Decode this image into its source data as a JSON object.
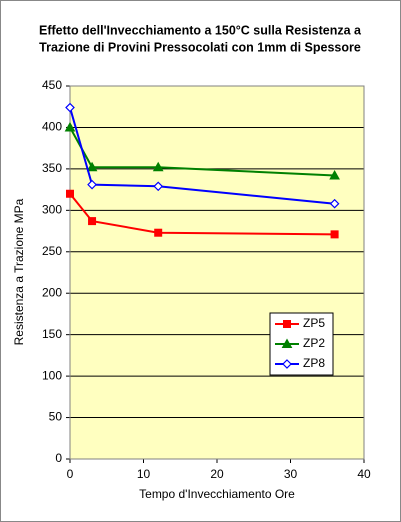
{
  "chart_data": {
    "type": "line",
    "title": [
      "Effetto dell'Invecchiamento a 150°C sulla Resistenza a",
      "Trazione di Provini Pressocolati con 1mm di Spessore"
    ],
    "x_label": "Tempo d'Invecchiamento Ore",
    "y_label": "Resistenza a Trazione MPa",
    "x": [
      0,
      3,
      12,
      36
    ],
    "series": [
      {
        "name": "ZP5",
        "color": "#ff0000",
        "marker": "square",
        "values": [
          320,
          287,
          273,
          271
        ]
      },
      {
        "name": "ZP2",
        "color": "#008000",
        "marker": "triangle",
        "values": [
          400,
          352,
          352,
          342
        ]
      },
      {
        "name": "ZP8",
        "color": "#0000ff",
        "marker": "diamond",
        "values": [
          424,
          331,
          329,
          308
        ]
      }
    ],
    "xlim": [
      0,
      40
    ],
    "xticks": [
      0,
      10,
      20,
      30,
      40
    ],
    "ylim": [
      0,
      450
    ],
    "yticks": [
      0,
      50,
      100,
      150,
      200,
      250,
      300,
      350,
      400,
      450
    ],
    "grid": true,
    "legend": "lower right"
  }
}
